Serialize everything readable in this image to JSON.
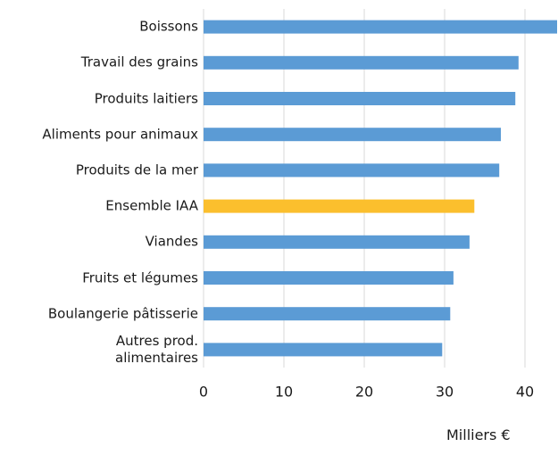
{
  "chart_data": {
    "type": "bar",
    "orientation": "horizontal",
    "categories": [
      "Boissons",
      "Travail des grains",
      "Produits laitiers",
      "Aliments pour animaux",
      "Produits de la mer",
      "Ensemble IAA",
      "Viandes",
      "Fruits et légumes",
      "Boulangerie pâtisserie",
      "Autres prod.\nalimentaires"
    ],
    "values": [
      44,
      39.2,
      38.8,
      37.0,
      36.8,
      33.7,
      33.1,
      31.1,
      30.7,
      29.7
    ],
    "colors": [
      "#5b9bd5",
      "#5b9bd5",
      "#5b9bd5",
      "#5b9bd5",
      "#5b9bd5",
      "#fbbf2d",
      "#5b9bd5",
      "#5b9bd5",
      "#5b9bd5",
      "#5b9bd5"
    ],
    "xlim": [
      0,
      44
    ],
    "xticks": [
      0,
      10,
      20,
      30,
      40
    ],
    "grid": true,
    "x_label": "Milliers €"
  }
}
